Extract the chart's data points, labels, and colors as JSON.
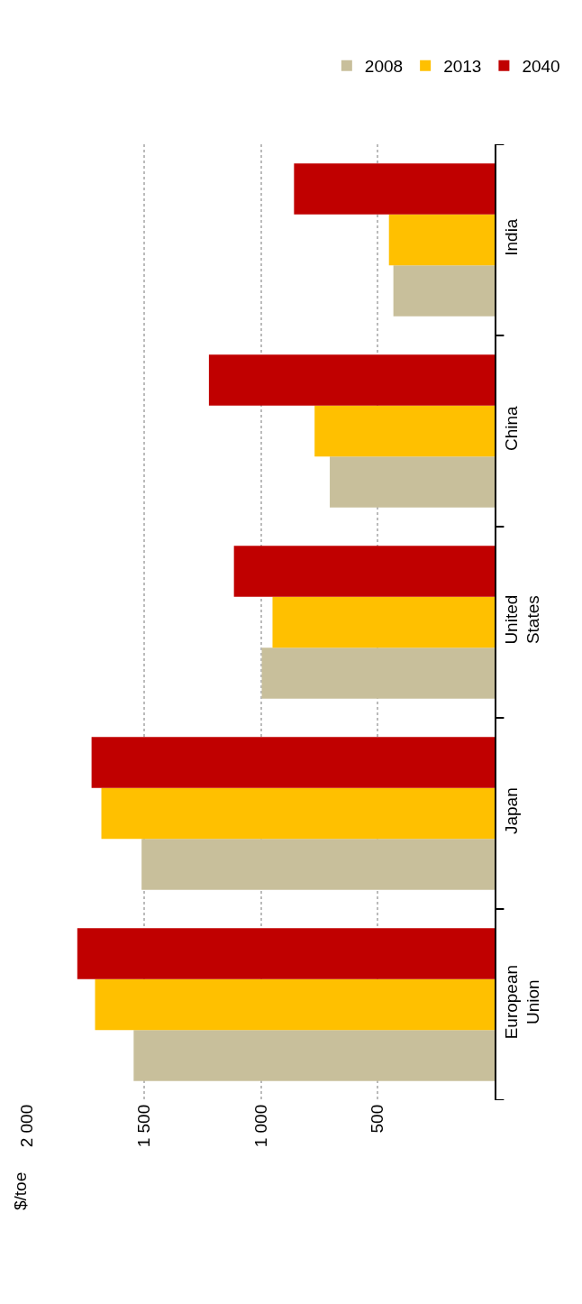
{
  "chart_data": {
    "type": "bar",
    "orientation": "horizontal",
    "annotations": [
      "$/toe"
    ],
    "categories": [
      "India",
      "China",
      "United States",
      "Japan",
      "European Union"
    ],
    "series": [
      {
        "name": "2008",
        "color": "#c8bf9b",
        "values": [
          433,
          705,
          996,
          1510,
          1544
        ]
      },
      {
        "name": "2013",
        "color": "#ffc000",
        "values": [
          452,
          770,
          950,
          1682,
          1709
        ]
      },
      {
        "name": "2040",
        "color": "#c00000",
        "values": [
          858,
          1222,
          1115,
          1724,
          1785
        ]
      }
    ],
    "xlim": [
      2000,
      0
    ],
    "xticks": [
      {
        "value": 2000,
        "label": "2 000"
      },
      {
        "value": 1500,
        "label": "1 500"
      },
      {
        "value": 1000,
        "label": "1 000"
      },
      500
    ],
    "grid": "x",
    "legend": "top right"
  }
}
